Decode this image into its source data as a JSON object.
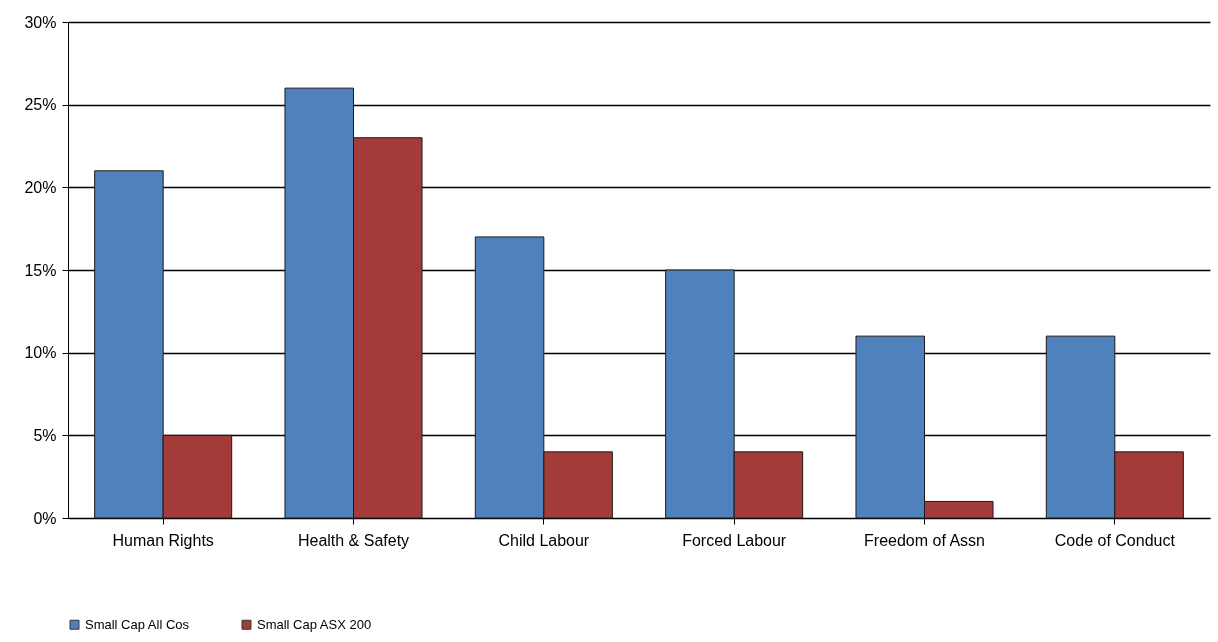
{
  "chart_data": {
    "type": "bar",
    "categories": [
      "Human Rights",
      "Health & Safety",
      "Child Labour",
      "Forced Labour",
      "Freedom of Assn",
      "Code of Conduct"
    ],
    "series": [
      {
        "name": "Small Cap All Cos",
        "color": "#4f81bd",
        "values": [
          21,
          26,
          17,
          15,
          11,
          11
        ]
      },
      {
        "name": "Small Cap ASX 200",
        "color": "#a33c38",
        "values": [
          5,
          23,
          4,
          4,
          1,
          4
        ]
      }
    ],
    "ylim": [
      0,
      30
    ],
    "yticks": [
      {
        "value": 0,
        "label": "0%"
      },
      {
        "value": 5,
        "label": "5%"
      },
      {
        "value": 10,
        "label": "10%"
      },
      {
        "value": 15,
        "label": "15%"
      },
      {
        "value": 20,
        "label": "20%"
      },
      {
        "value": 25,
        "label": "25%"
      },
      {
        "value": 30,
        "label": "30%"
      }
    ],
    "grid": "y",
    "legend": "bottom"
  }
}
